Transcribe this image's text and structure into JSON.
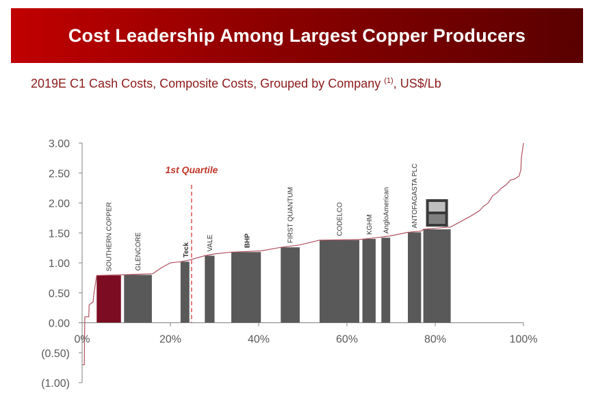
{
  "header": {
    "title": "Cost Leadership Among Largest Copper Producers"
  },
  "subtitle": {
    "main": "2019E C1 Cash Costs, Composite Costs, Grouped by Company ",
    "footnote": "(1)",
    "units": ", US$/Lb"
  },
  "chart_data": {
    "type": "bar",
    "xlim": [
      0,
      100
    ],
    "ylim": [
      -1.0,
      3.0
    ],
    "x_ticks": [
      {
        "value": 0,
        "label": "0%"
      },
      {
        "value": 20,
        "label": "20%"
      },
      {
        "value": 40,
        "label": "40%"
      },
      {
        "value": 60,
        "label": "60%"
      },
      {
        "value": 80,
        "label": "80%"
      },
      {
        "value": 100,
        "label": "100%"
      }
    ],
    "y_ticks": [
      {
        "value": 3.0,
        "label": "3.00"
      },
      {
        "value": 2.5,
        "label": "2.50"
      },
      {
        "value": 2.0,
        "label": "2.00"
      },
      {
        "value": 1.5,
        "label": "1.50"
      },
      {
        "value": 1.0,
        "label": "1.00"
      },
      {
        "value": 0.5,
        "label": "0.50"
      },
      {
        "value": 0.0,
        "label": "0.00"
      },
      {
        "value": -0.5,
        "label": "(0.50)"
      },
      {
        "value": -1.0,
        "label": "(1.00)"
      }
    ],
    "quartile": {
      "x": 24.8,
      "label": "1st Quartile"
    },
    "bars": [
      {
        "company": "SOUTHERN COPPER",
        "x_start": 3.3,
        "x_end": 8.8,
        "value": 0.79,
        "color": "#7b0c22"
      },
      {
        "company": "GLENCORE",
        "x_start": 9.5,
        "x_end": 15.8,
        "value": 0.8,
        "color": "#595959"
      },
      {
        "company": "Teck",
        "x_start": 22.3,
        "x_end": 24.3,
        "value": 1.02,
        "color": "#595959"
      },
      {
        "company": "VALE",
        "x_start": 27.8,
        "x_end": 30.0,
        "value": 1.12,
        "color": "#595959"
      },
      {
        "company": "BHP",
        "x_start": 33.8,
        "x_end": 40.5,
        "value": 1.18,
        "color": "#595959"
      },
      {
        "company": "FIRST QUANTUM",
        "x_start": 45.0,
        "x_end": 49.3,
        "value": 1.26,
        "color": "#595959"
      },
      {
        "company": "CODELCO",
        "x_start": 53.8,
        "x_end": 62.8,
        "value": 1.38,
        "color": "#595959"
      },
      {
        "company": "KGHM",
        "x_start": 63.5,
        "x_end": 66.5,
        "value": 1.4,
        "color": "#595959"
      },
      {
        "company": "AngloAmerican",
        "x_start": 67.8,
        "x_end": 69.8,
        "value": 1.42,
        "color": "#595959"
      },
      {
        "company": "ANTOFAGASTA PLC",
        "x_start": 73.8,
        "x_end": 76.8,
        "value": 1.51,
        "color": "#595959"
      },
      {
        "company": "FM",
        "x_start": 77.3,
        "x_end": 83.5,
        "value": 1.56,
        "color": "#595959"
      }
    ],
    "cost_curve": {
      "x": [
        0,
        0.5,
        0.6,
        1.5,
        1.6,
        2.5,
        2.6,
        3.3,
        8.8,
        16,
        18,
        20,
        22.3,
        24.5,
        27.8,
        30,
        33.8,
        40.5,
        45,
        49.3,
        53.8,
        62.8,
        66.5,
        69.8,
        73.8,
        76.8,
        77.3,
        83.5,
        86,
        88,
        90,
        91,
        92,
        93,
        94,
        95,
        96,
        97,
        98,
        99,
        99.4,
        99.5,
        100
      ],
      "y": [
        -0.7,
        -0.7,
        0.1,
        0.1,
        0.3,
        0.35,
        0.45,
        0.79,
        0.8,
        0.82,
        0.92,
        1.0,
        1.02,
        1.05,
        1.12,
        1.15,
        1.18,
        1.2,
        1.26,
        1.3,
        1.38,
        1.39,
        1.42,
        1.45,
        1.51,
        1.53,
        1.56,
        1.6,
        1.7,
        1.78,
        1.87,
        1.95,
        2.0,
        2.12,
        2.17,
        2.25,
        2.3,
        2.38,
        2.4,
        2.45,
        2.55,
        2.75,
        3.0
      ]
    }
  },
  "colors": {
    "curve": "#b05060",
    "quartile": "#e05050",
    "axis": "#808080"
  }
}
